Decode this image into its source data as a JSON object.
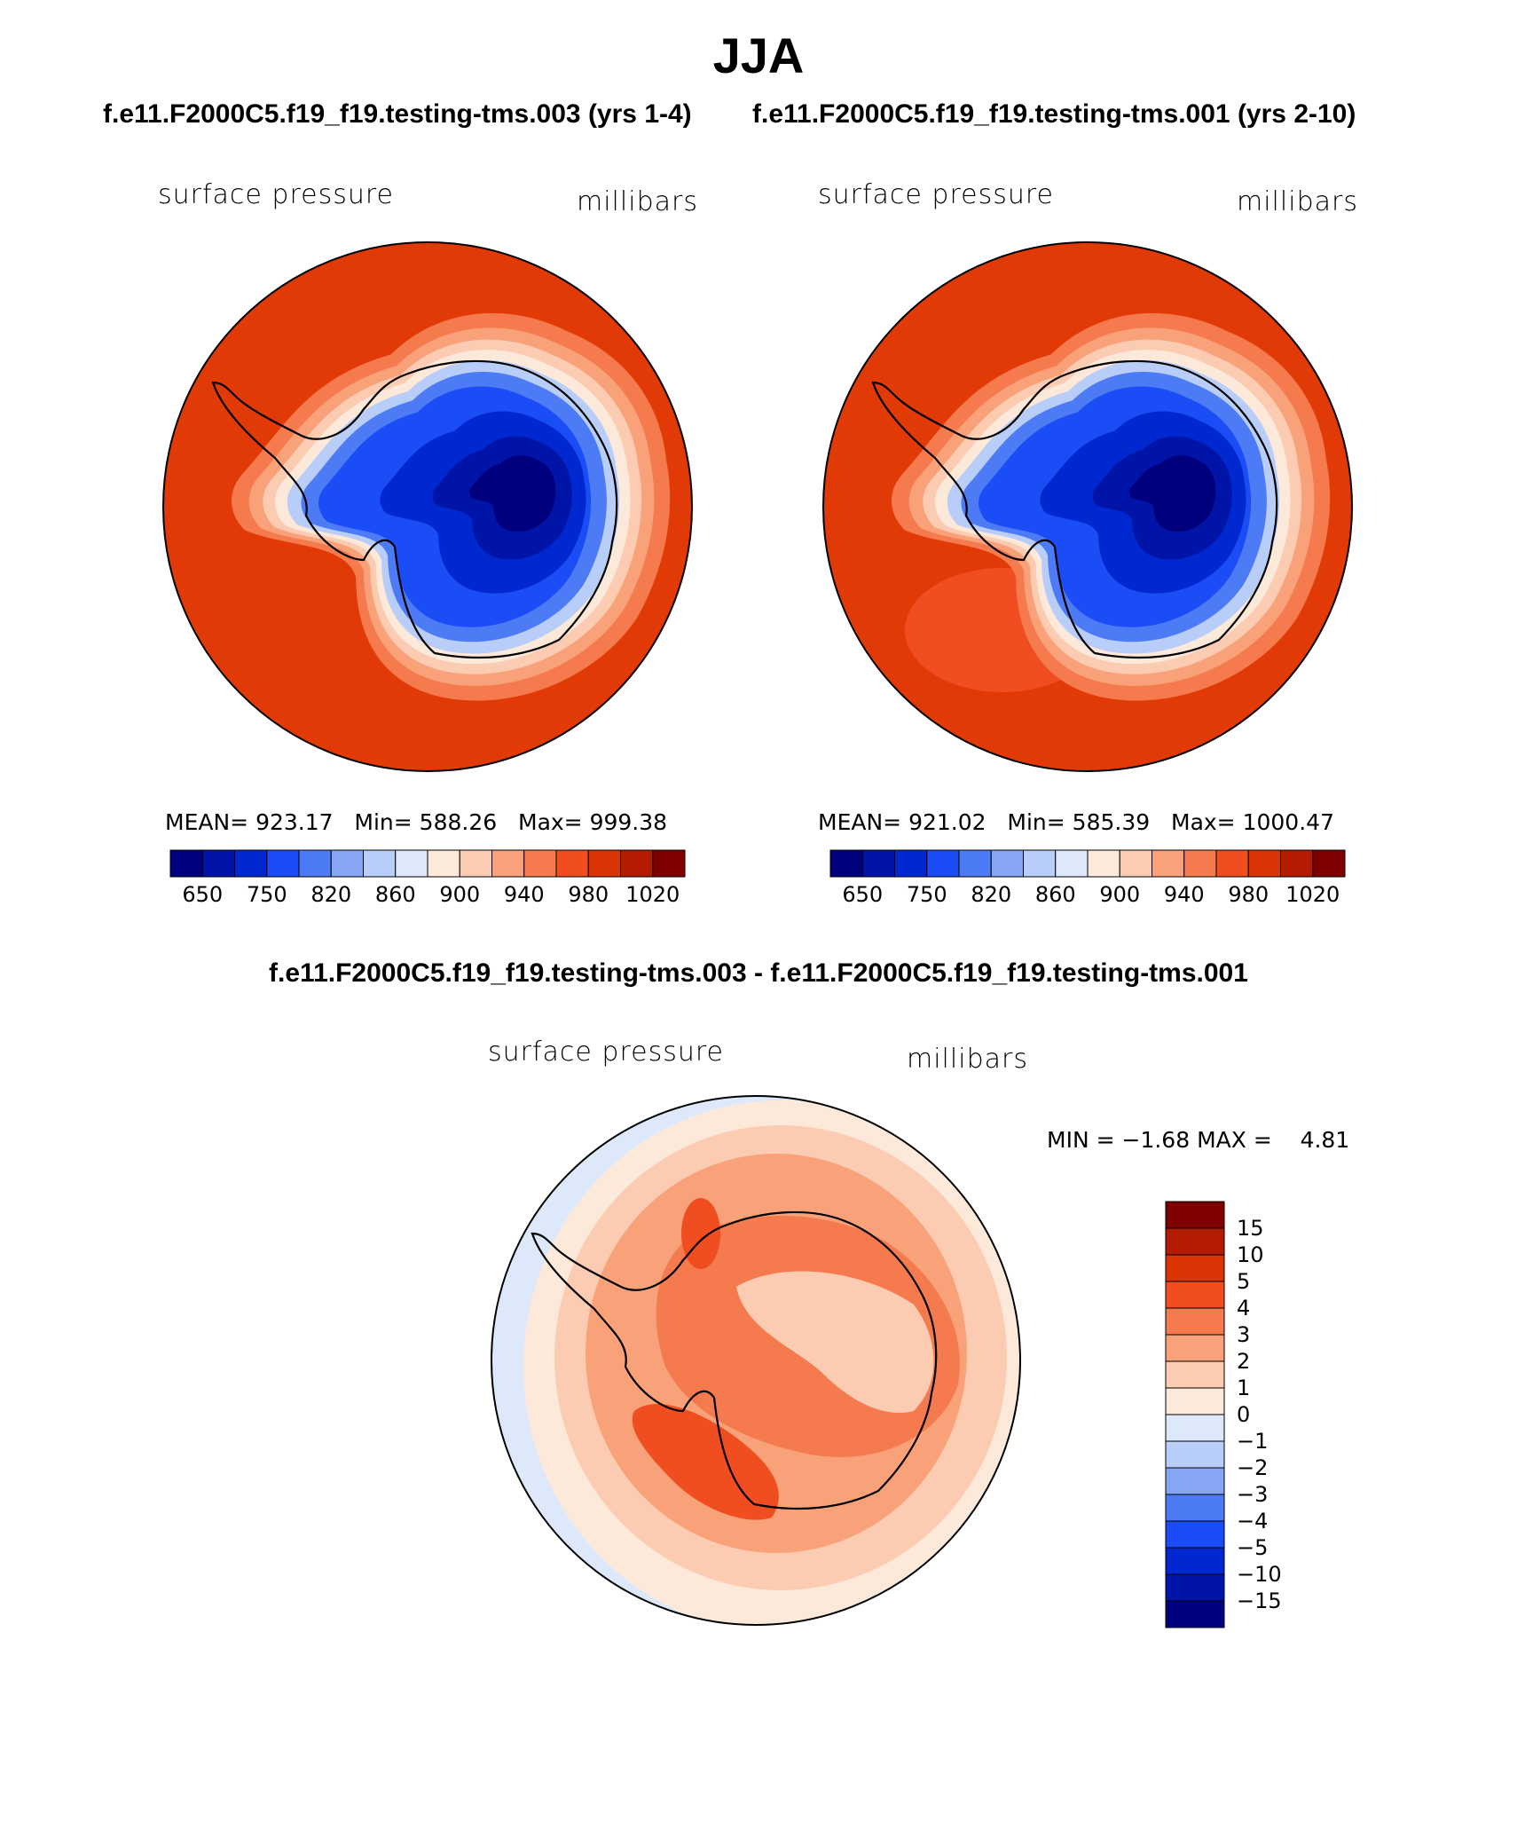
{
  "title": "JJA",
  "panels": [
    {
      "case_title": "f.e11.F2000C5.f19_f19.testing-tms.003 (yrs 1-4)",
      "variable": "surface pressure",
      "units": "millibars",
      "stats": {
        "mean_label": "MEAN=",
        "mean": "923.17",
        "min_label": "Min=",
        "min": "588.26",
        "max_label": "Max=",
        "max": "999.38"
      }
    },
    {
      "case_title": "f.e11.F2000C5.f19_f19.testing-tms.001 (yrs 2-10)",
      "variable": "surface pressure",
      "units": "millibars",
      "stats": {
        "mean_label": "MEAN=",
        "mean": "921.02",
        "min_label": "Min=",
        "min": "585.39",
        "max_label": "Max=",
        "max": "1000.47"
      }
    }
  ],
  "diff_panel": {
    "title": "f.e11.F2000C5.f19_f19.testing-tms.003 - f.e11.F2000C5.f19_f19.testing-tms.001",
    "variable": "surface pressure",
    "units": "millibars",
    "min_label": "MIN =",
    "min": "−1.68",
    "max_label": "MAX =",
    "max": "4.81"
  },
  "colorbar_abs": {
    "colors": [
      "#00007f",
      "#0014a8",
      "#0028d0",
      "#1a4df5",
      "#4d7bf5",
      "#86a6f5",
      "#b8cdf8",
      "#dde9fb",
      "#fde9da",
      "#fcccb2",
      "#f9a27a",
      "#f57a4d",
      "#f04e20",
      "#dc3505",
      "#b31c00",
      "#7f0000"
    ],
    "labels": [
      "650",
      "750",
      "820",
      "860",
      "900",
      "940",
      "980",
      "1020"
    ]
  },
  "colorbar_diff": {
    "colors": [
      "#00007f",
      "#0014a8",
      "#0028d0",
      "#1a4df5",
      "#4d7bf5",
      "#86a6f5",
      "#b8cdf8",
      "#dde9fb",
      "#fde9da",
      "#fcccb2",
      "#f9a27a",
      "#f57a4d",
      "#f04e20",
      "#dc3505",
      "#b31c00",
      "#7f0000"
    ],
    "labels": [
      "15",
      "10",
      "5",
      "4",
      "3",
      "2",
      "1",
      "0",
      "−1",
      "−2",
      "−3",
      "−4",
      "−5",
      "−10",
      "−15"
    ]
  },
  "chart_data": [
    {
      "type": "heatmap",
      "title": "surface pressure",
      "subtitle": "f.e11.F2000C5.f19_f19.testing-tms.003 (yrs 1-4)",
      "units": "millibars",
      "projection": "south polar stereographic",
      "contour_levels": [
        650,
        700,
        750,
        800,
        820,
        840,
        860,
        880,
        900,
        920,
        940,
        960,
        980,
        1000,
        1020
      ],
      "mean": 923.17,
      "min": 588.26,
      "max": 999.38
    },
    {
      "type": "heatmap",
      "title": "surface pressure",
      "subtitle": "f.e11.F2000C5.f19_f19.testing-tms.001 (yrs 2-10)",
      "units": "millibars",
      "projection": "south polar stereographic",
      "contour_levels": [
        650,
        700,
        750,
        800,
        820,
        840,
        860,
        880,
        900,
        920,
        940,
        960,
        980,
        1000,
        1020
      ],
      "mean": 921.02,
      "min": 585.39,
      "max": 1000.47
    },
    {
      "type": "heatmap",
      "title": "surface pressure",
      "subtitle": "f.e11.F2000C5.f19_f19.testing-tms.003 - f.e11.F2000C5.f19_f19.testing-tms.001",
      "units": "millibars",
      "projection": "south polar stereographic",
      "contour_levels": [
        -15,
        -10,
        -5,
        -4,
        -3,
        -2,
        -1,
        0,
        1,
        2,
        3,
        4,
        5,
        10,
        15
      ],
      "min": -1.68,
      "max": 4.81
    }
  ]
}
